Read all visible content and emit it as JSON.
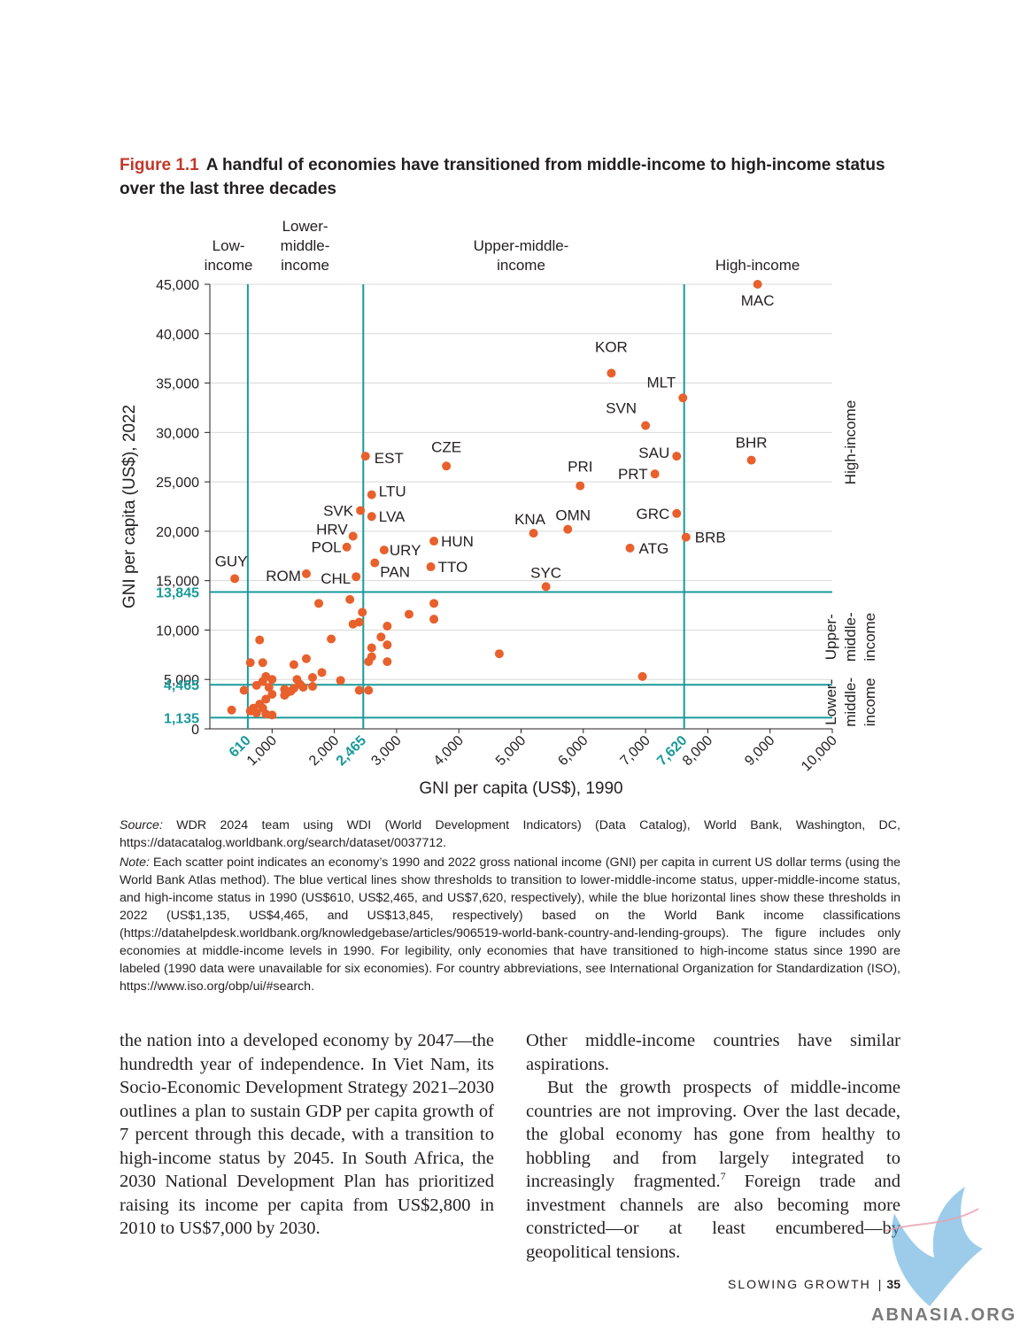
{
  "figure": {
    "number": "Figure 1.1",
    "title": "A handful of economies have transitioned from middle-income to high-income status over the last three decades"
  },
  "chart_data": {
    "type": "scatter",
    "xlabel": "GNI per capita (US$), 1990",
    "ylabel": "GNI per capita (US$), 2022",
    "xlim": [
      0,
      10000
    ],
    "ylim": [
      0,
      45000
    ],
    "x_ticks": [
      "1,000",
      "2,000",
      "3,000",
      "4,000",
      "5,000",
      "6,000",
      "7,000",
      "8,000",
      "9,000",
      "10,000"
    ],
    "y_ticks": [
      "0",
      "5,000",
      "10,000",
      "15,000",
      "20,000",
      "25,000",
      "30,000",
      "35,000",
      "40,000",
      "45,000"
    ],
    "x_thresholds": [
      {
        "value": 610,
        "label": "610"
      },
      {
        "value": 2465,
        "label": "2,465"
      },
      {
        "value": 7620,
        "label": "7,620"
      }
    ],
    "y_thresholds": [
      {
        "value": 1135,
        "label": "1,135"
      },
      {
        "value": 4465,
        "label": "4,465"
      },
      {
        "value": 13845,
        "label": "13,845"
      }
    ],
    "top_zone_labels": [
      {
        "x": 300,
        "lines": [
          "Low-",
          "income"
        ]
      },
      {
        "x": 1530,
        "lines": [
          "Lower-",
          "middle-",
          "income"
        ]
      },
      {
        "x": 5000,
        "lines": [
          "Upper-middle-",
          "income"
        ]
      },
      {
        "x": 8800,
        "lines": [
          "High-income"
        ]
      }
    ],
    "right_zone_labels": [
      {
        "y": 29000,
        "lines": [
          "High-income"
        ]
      },
      {
        "y": 9300,
        "lines": [
          "Upper-",
          "middle-",
          "income"
        ]
      },
      {
        "y": 2700,
        "lines": [
          "Lower-",
          "middle-",
          "income"
        ]
      }
    ],
    "threshold_color": "#1a9a9a",
    "point_color": "#e8602c",
    "labeled_points": [
      {
        "x": 8800,
        "y": 45000,
        "label": "MAC"
      },
      {
        "x": 6450,
        "y": 36000,
        "label": "KOR"
      },
      {
        "x": 7600,
        "y": 33500,
        "label": "MLT"
      },
      {
        "x": 7000,
        "y": 30700,
        "label": "SVN"
      },
      {
        "x": 8700,
        "y": 27200,
        "label": "BHR"
      },
      {
        "x": 7500,
        "y": 27600,
        "label": "SAU"
      },
      {
        "x": 7150,
        "y": 25800,
        "label": "PRT"
      },
      {
        "x": 5950,
        "y": 24600,
        "label": "PRI"
      },
      {
        "x": 3800,
        "y": 26600,
        "label": "CZE"
      },
      {
        "x": 2500,
        "y": 27600,
        "label": "EST"
      },
      {
        "x": 2600,
        "y": 23700,
        "label": "LTU"
      },
      {
        "x": 2600,
        "y": 21500,
        "label": "LVA"
      },
      {
        "x": 2420,
        "y": 22100,
        "label": "SVK"
      },
      {
        "x": 2300,
        "y": 19500,
        "label": "HRV"
      },
      {
        "x": 2200,
        "y": 18400,
        "label": "POL"
      },
      {
        "x": 7500,
        "y": 21800,
        "label": "GRC"
      },
      {
        "x": 7650,
        "y": 19400,
        "label": "BRB"
      },
      {
        "x": 6750,
        "y": 18300,
        "label": "ATG"
      },
      {
        "x": 5750,
        "y": 20200,
        "label": "OMN"
      },
      {
        "x": 5200,
        "y": 19800,
        "label": "KNA"
      },
      {
        "x": 3600,
        "y": 19000,
        "label": "HUN"
      },
      {
        "x": 2800,
        "y": 18100,
        "label": "URY"
      },
      {
        "x": 2650,
        "y": 16800,
        "label": "PAN"
      },
      {
        "x": 3550,
        "y": 16400,
        "label": "TTO"
      },
      {
        "x": 5400,
        "y": 14400,
        "label": "SYC"
      },
      {
        "x": 400,
        "y": 15200,
        "label": "GUY"
      },
      {
        "x": 1550,
        "y": 15700,
        "label": "ROM"
      },
      {
        "x": 2350,
        "y": 15400,
        "label": "CHL"
      }
    ],
    "points": [
      [
        3600,
        12700
      ],
      [
        3600,
        11100
      ],
      [
        3200,
        11600
      ],
      [
        2450,
        11800
      ],
      [
        2400,
        10800
      ],
      [
        2300,
        10600
      ],
      [
        2850,
        10400
      ],
      [
        2750,
        9300
      ],
      [
        2850,
        8500
      ],
      [
        2600,
        8200
      ],
      [
        2600,
        7300
      ],
      [
        2550,
        6800
      ],
      [
        2850,
        6800
      ],
      [
        1950,
        9100
      ],
      [
        1750,
        12700
      ],
      [
        2250,
        13100
      ],
      [
        4650,
        7600
      ],
      [
        6950,
        5300
      ],
      [
        800,
        9000
      ],
      [
        650,
        6700
      ],
      [
        850,
        6700
      ],
      [
        1350,
        6500
      ],
      [
        1550,
        7100
      ],
      [
        900,
        5300
      ],
      [
        1000,
        5000
      ],
      [
        850,
        4800
      ],
      [
        750,
        4400
      ],
      [
        1400,
        5000
      ],
      [
        1450,
        4500
      ],
      [
        1350,
        4100
      ],
      [
        1200,
        4000
      ],
      [
        1300,
        3800
      ],
      [
        1650,
        5200
      ],
      [
        1800,
        5700
      ],
      [
        1650,
        4300
      ],
      [
        2100,
        4900
      ],
      [
        2400,
        3900
      ],
      [
        2550,
        3900
      ],
      [
        950,
        4200
      ],
      [
        1000,
        3500
      ],
      [
        900,
        3000
      ],
      [
        800,
        2500
      ],
      [
        700,
        2100
      ],
      [
        650,
        1800
      ],
      [
        750,
        1600
      ],
      [
        900,
        1500
      ],
      [
        1000,
        1400
      ],
      [
        850,
        2100
      ],
      [
        550,
        3900
      ],
      [
        350,
        1900
      ],
      [
        1500,
        4200
      ],
      [
        1250,
        3700
      ],
      [
        1200,
        3400
      ]
    ]
  },
  "source": {
    "lead": "Source:",
    "text": "WDR 2024 team using WDI (World Development Indicators) (Data Catalog), World Bank, Washington, DC, https://datacatalog.worldbank.org/search/dataset/0037712."
  },
  "note": {
    "lead": "Note:",
    "text": "Each scatter point indicates an economy’s 1990 and 2022 gross national income (GNI) per capita in current US dollar terms (using the World Bank Atlas method). The blue vertical lines show thresholds to transition to lower-middle-income status, upper-middle-income status, and high-income status in 1990 (US$610, US$2,465, and US$7,620, respectively), while the blue horizontal lines show these thresholds in 2022 (US$1,135, US$4,465, and US$13,845, respectively) based on the World Bank income classifications (https://datahelpdesk.worldbank.org/knowledgebase/articles/906519-world-bank-country-and-lending-groups). The figure includes only economies at middle-income levels in 1990. For legibility, only economies that have transitioned to high-income status since 1990 are labeled (1990 data were unavailable for six economies). For country abbreviations, see International Organization for Standardization (ISO), https://www.iso.org/obp/ui/#search."
  },
  "body": {
    "left": "the nation into a developed economy by 2047—the hundredth year of independence. In Viet Nam, its Socio-Economic Development Strategy 2021–2030 outlines a plan to sustain GDP per capita growth of 7 percent through this decade, with a transition to high-income status by 2045. In South Africa, the 2030 National Development Plan has prioritized raising its income per capita from US$2,800 in 2010 to US$7,000 by 2030.",
    "right_p1": "Other middle-income countries have similar aspirations.",
    "right_p2_before": "But the growth prospects of middle-income countries are not improving. Over the last decade, the global economy has gone from healthy to hobbling and from largely integrated to increasingly fragmented.",
    "right_p2_sup": "7",
    "right_p2_after": " Foreign trade and investment channels are also becoming more constricted—or at least encumbered—by geopolitical tensions."
  },
  "footer": {
    "section": "SLOWING GROWTH",
    "separator": "|",
    "page": "35"
  },
  "watermark": {
    "text": "ABNASIA.ORG"
  }
}
